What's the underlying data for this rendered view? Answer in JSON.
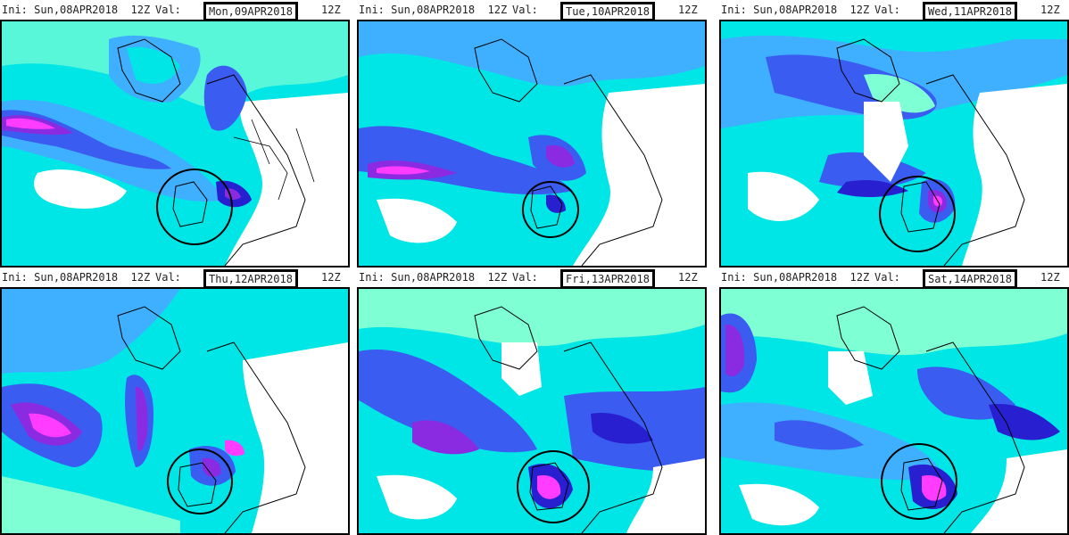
{
  "panels": [
    {
      "ini_label": "Ini:",
      "ini_value": "Sun,08APR2018  12Z",
      "val_label": "Val:",
      "valid_date": "Mon,09APR2018",
      "valid_hour": "12Z"
    },
    {
      "ini_label": "Ini:",
      "ini_value": "Sun,08APR2018  12Z",
      "val_label": "Val:",
      "valid_date": "Tue,10APR2018",
      "valid_hour": "12Z"
    },
    {
      "ini_label": "Ini:",
      "ini_value": "Sun,08APR2018  12Z",
      "val_label": "Val:",
      "valid_date": "Wed,11APR2018",
      "valid_hour": "12Z"
    },
    {
      "ini_label": "Ini:",
      "ini_value": "Sun,08APR2018  12Z",
      "val_label": "Val:",
      "valid_date": "Thu,12APR2018",
      "valid_hour": "12Z"
    },
    {
      "ini_label": "Ini:",
      "ini_value": "Sun,08APR2018  12Z",
      "val_label": "Val:",
      "valid_date": "Fri,13APR2018",
      "valid_hour": "12Z"
    },
    {
      "ini_label": "Ini:",
      "ini_value": "Sun,08APR2018  12Z",
      "val_label": "Val:",
      "valid_date": "Sat,14APR2018",
      "valid_hour": "12Z"
    }
  ],
  "colors": {
    "cyan_light": "#7fffd4",
    "cyan": "#00e5e5",
    "sky": "#3fb0ff",
    "blue": "#3a5cf0",
    "deep_blue": "#2820d0",
    "purple": "#8a2be2",
    "magenta": "#ff3cff",
    "land_line": "#000000"
  }
}
